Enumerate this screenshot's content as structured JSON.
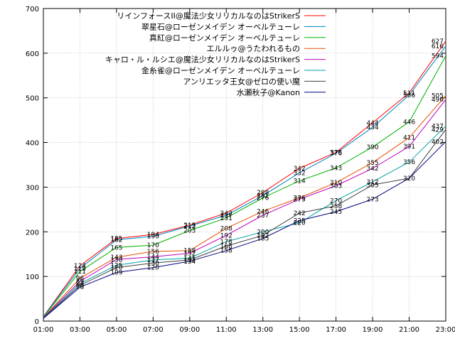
{
  "chart_data": {
    "type": "line",
    "title": "",
    "xlabel": "",
    "ylabel": "",
    "grid": true,
    "legend_position": "top-right",
    "ylim": [
      0,
      700
    ],
    "y_ticks": [
      0,
      100,
      200,
      300,
      400,
      500,
      600,
      700
    ],
    "xlim": [
      "01:00",
      "23:00"
    ],
    "x_ticks": [
      "01:00",
      "03:00",
      "05:00",
      "07:00",
      "09:00",
      "11:00",
      "13:00",
      "15:00",
      "17:00",
      "19:00",
      "21:00",
      "23:00"
    ],
    "series": [
      {
        "name": "リインフォースII@魔法少女リリカルなのはStrikerS",
        "color": "#ff0000",
        "points": [
          [
            "01:00",
            10
          ],
          [
            "03:00",
            124
          ],
          [
            "05:00",
            185
          ],
          [
            "07:00",
            194
          ],
          [
            "09:00",
            215
          ],
          [
            "11:00",
            242
          ],
          [
            "13:00",
            288
          ],
          [
            "15:00",
            342
          ],
          [
            "17:00",
            378
          ],
          [
            "19:00",
            444
          ],
          [
            "21:00",
            511
          ],
          [
            "23:00",
            627
          ]
        ],
        "labels": [
          124,
          185,
          194,
          215,
          242,
          288,
          342,
          378,
          444,
          511,
          627
        ]
      },
      {
        "name": "翠星石@ローゼンメイデン オーベルテューレ",
        "color": "#0080c0",
        "points": [
          [
            "01:00",
            10
          ],
          [
            "03:00",
            118
          ],
          [
            "05:00",
            182
          ],
          [
            "07:00",
            190
          ],
          [
            "09:00",
            213
          ],
          [
            "11:00",
            237
          ],
          [
            "13:00",
            281
          ],
          [
            "15:00",
            332
          ],
          [
            "17:00",
            376
          ],
          [
            "19:00",
            434
          ],
          [
            "21:00",
            506
          ],
          [
            "23:00",
            616
          ]
        ],
        "labels": [
          118,
          182,
          190,
          213,
          237,
          281,
          332,
          376,
          434,
          506,
          616
        ]
      },
      {
        "name": "真紅@ローゼンメイデン オーベルテューレ",
        "color": "#00b000",
        "points": [
          [
            "01:00",
            9
          ],
          [
            "03:00",
            111
          ],
          [
            "05:00",
            165
          ],
          [
            "07:00",
            170
          ],
          [
            "09:00",
            203
          ],
          [
            "11:00",
            231
          ],
          [
            "13:00",
            276
          ],
          [
            "15:00",
            314
          ],
          [
            "17:00",
            343
          ],
          [
            "19:00",
            390
          ],
          [
            "21:00",
            446
          ],
          [
            "23:00",
            594
          ]
        ],
        "labels": [
          111,
          165,
          170,
          203,
          231,
          276,
          314,
          343,
          390,
          446,
          594
        ]
      },
      {
        "name": "エルルゥ@うたわれるもの",
        "color": "#e05000",
        "points": [
          [
            "01:00",
            8
          ],
          [
            "03:00",
            96
          ],
          [
            "05:00",
            143
          ],
          [
            "07:00",
            156
          ],
          [
            "09:00",
            158
          ],
          [
            "11:00",
            208
          ],
          [
            "13:00",
            246
          ],
          [
            "15:00",
            276
          ],
          [
            "17:00",
            310
          ],
          [
            "19:00",
            355
          ],
          [
            "21:00",
            411
          ],
          [
            "23:00",
            505
          ]
        ],
        "labels": [
          96,
          143,
          156,
          158,
          208,
          246,
          276,
          310,
          355,
          411,
          505
        ]
      },
      {
        "name": "キャロ・ル・ルシエ@魔法少女リリカルなのはStrikerS",
        "color": "#c000c0",
        "points": [
          [
            "01:00",
            8
          ],
          [
            "03:00",
            89
          ],
          [
            "05:00",
            138
          ],
          [
            "07:00",
            144
          ],
          [
            "09:00",
            152
          ],
          [
            "11:00",
            192
          ],
          [
            "13:00",
            237
          ],
          [
            "15:00",
            273
          ],
          [
            "17:00",
            303
          ],
          [
            "19:00",
            342
          ],
          [
            "21:00",
            391
          ],
          [
            "23:00",
            496
          ]
        ],
        "labels": [
          89,
          138,
          144,
          152,
          192,
          237,
          273,
          303,
          342,
          391,
          496
        ]
      },
      {
        "name": "金糸雀@ローゼンメイデン オーベルテューレ",
        "color": "#00a0a0",
        "points": [
          [
            "01:00",
            7
          ],
          [
            "03:00",
            84
          ],
          [
            "05:00",
            125
          ],
          [
            "07:00",
            137
          ],
          [
            "09:00",
            141
          ],
          [
            "11:00",
            178
          ],
          [
            "13:00",
            200
          ],
          [
            "15:00",
            220
          ],
          [
            "17:00",
            270
          ],
          [
            "19:00",
            312
          ],
          [
            "21:00",
            356
          ],
          [
            "23:00",
            437
          ]
        ],
        "labels": [
          84,
          125,
          137,
          141,
          178,
          200,
          220,
          270,
          312,
          356,
          437
        ]
      },
      {
        "name": "アンリエッタ王女@ゼロの使い魔",
        "color": "#404040",
        "points": [
          [
            "01:00",
            7
          ],
          [
            "03:00",
            80
          ],
          [
            "05:00",
            120
          ],
          [
            "07:00",
            130
          ],
          [
            "09:00",
            137
          ],
          [
            "11:00",
            168
          ],
          [
            "13:00",
            192
          ],
          [
            "15:00",
            242
          ],
          [
            "17:00",
            258
          ],
          [
            "19:00",
            305
          ],
          [
            "21:00",
            320
          ],
          [
            "23:00",
            429
          ]
        ],
        "labels": [
          80,
          120,
          130,
          137,
          168,
          192,
          242,
          258,
          305,
          429
        ]
      },
      {
        "name": "水瀬秋子@Kanon",
        "color": "#000080",
        "points": [
          [
            "01:00",
            6
          ],
          [
            "03:00",
            76
          ],
          [
            "05:00",
            109
          ],
          [
            "07:00",
            120
          ],
          [
            "09:00",
            134
          ],
          [
            "11:00",
            158
          ],
          [
            "13:00",
            185
          ],
          [
            "15:00",
            225
          ],
          [
            "17:00",
            245
          ],
          [
            "19:00",
            273
          ],
          [
            "21:00",
            320
          ],
          [
            "23:00",
            402
          ]
        ],
        "labels": [
          76,
          109,
          120,
          134,
          158,
          185,
          225,
          245,
          273,
          320,
          402
        ]
      }
    ]
  }
}
